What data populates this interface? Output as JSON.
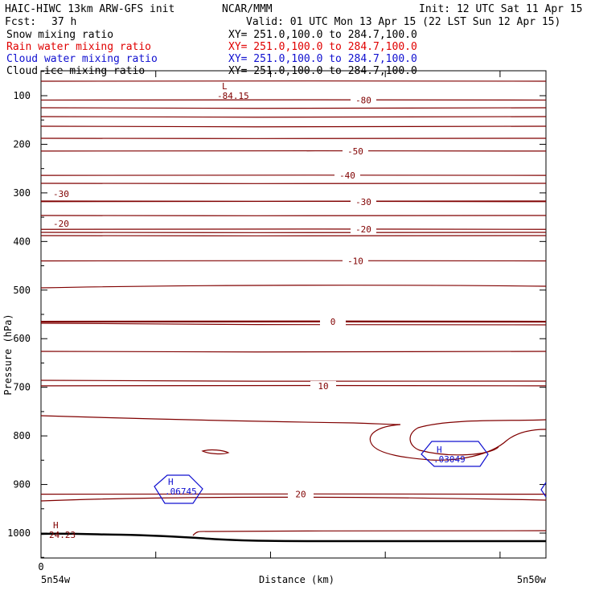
{
  "header": {
    "title_left": "HAIC-HIWC 13km ARW-GFS init",
    "title_mid": "NCAR/MMM",
    "init": "Init: 12 UTC Sat 11 Apr 15",
    "fcst_label": "Fcst:",
    "fcst_value": "37 h",
    "valid": "Valid: 01 UTC Mon 13 Apr 15 (22 LST Sun 12 Apr 15)"
  },
  "fields": [
    {
      "name": "Snow mixing ratio",
      "xy": "XY= 251.0,100.0 to 284.7,100.0",
      "color": "#000000"
    },
    {
      "name": "Rain water mixing ratio",
      "xy": "XY= 251.0,100.0 to 284.7,100.0",
      "color": "#e00000"
    },
    {
      "name": "Cloud water mixing ratio",
      "xy": "XY= 251.0,100.0 to 284.7,100.0",
      "color": "#1010d0"
    },
    {
      "name": "Cloud ice mixing ratio",
      "xy": "XY= 251.0,100.0 to 284.7,100.0",
      "color": "#000000"
    }
  ],
  "chart_data": {
    "type": "line",
    "ylabel": "Pressure (hPa)",
    "xlabel": "Distance (km)",
    "x_start_label": "5n54w",
    "x_end_label": "5n50w",
    "x_origin_label": "0",
    "y_ticks": [
      "100",
      "200",
      "300",
      "400",
      "500",
      "600",
      "700",
      "800",
      "900",
      "1000"
    ],
    "ylim": [
      1050,
      50
    ],
    "contour_color": "#800000",
    "cloud_water_color": "#1010d0",
    "isotherms": [
      {
        "value": -80,
        "label": "-80",
        "p": 109
      },
      {
        "value": -50,
        "label": "-50",
        "p": 214
      },
      {
        "value": -40,
        "label": "-40",
        "p": 264
      },
      {
        "value": -30,
        "label": "-30",
        "p": 318
      },
      {
        "value": -20,
        "label": "-20",
        "p": 375
      },
      {
        "value": -10,
        "label": "-10",
        "p": 440
      },
      {
        "value": 0,
        "label": "0",
        "p": 565
      },
      {
        "value": 10,
        "label": "10",
        "p": 697
      },
      {
        "value": 20,
        "label": "20",
        "p": 920
      }
    ],
    "annotations": [
      {
        "text": "L",
        "value": "-84.15",
        "kind": "min"
      },
      {
        "text": "H",
        "value": "24.23",
        "kind": "max"
      },
      {
        "text": "H",
        "value": ".06745",
        "kind": "max"
      },
      {
        "text": "H",
        "value": ".03049",
        "kind": "max"
      }
    ]
  }
}
